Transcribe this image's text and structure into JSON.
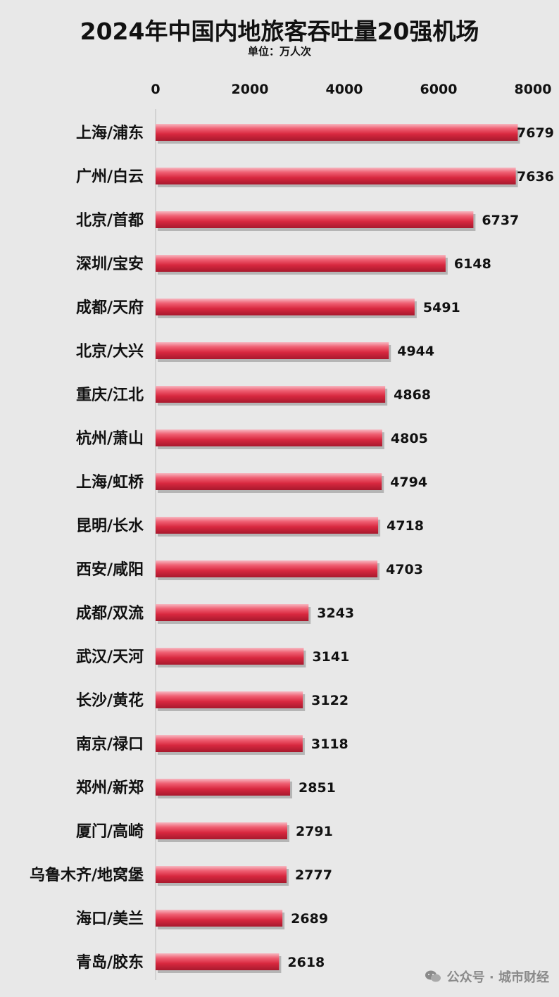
{
  "chart_data": {
    "type": "bar",
    "orientation": "horizontal",
    "title": "2024年中国内地旅客吞吐量20强机场",
    "unit_label": "单位：万人次",
    "xlim": [
      0,
      8000
    ],
    "x_ticks": [
      "0",
      "2000",
      "4000",
      "6000",
      "8000"
    ],
    "grid": false,
    "bar_color": "#d8283f",
    "categories": [
      "上海/浦东",
      "广州/白云",
      "北京/首都",
      "深圳/宝安",
      "成都/天府",
      "北京/大兴",
      "重庆/江北",
      "杭州/萧山",
      "上海/虹桥",
      "昆明/长水",
      "西安/咸阳",
      "成都/双流",
      "武汉/天河",
      "长沙/黄花",
      "南京/禄口",
      "郑州/新郑",
      "厦门/高崎",
      "乌鲁木齐/地窝堡",
      "海口/美兰",
      "青岛/胶东"
    ],
    "values": [
      7679,
      7636,
      6737,
      6148,
      5491,
      4944,
      4868,
      4805,
      4794,
      4718,
      4703,
      3243,
      3141,
      3122,
      3118,
      2851,
      2791,
      2777,
      2689,
      2618
    ]
  },
  "watermark": {
    "icon": "wechat-icon",
    "text": "公众号 · 城市财经"
  }
}
